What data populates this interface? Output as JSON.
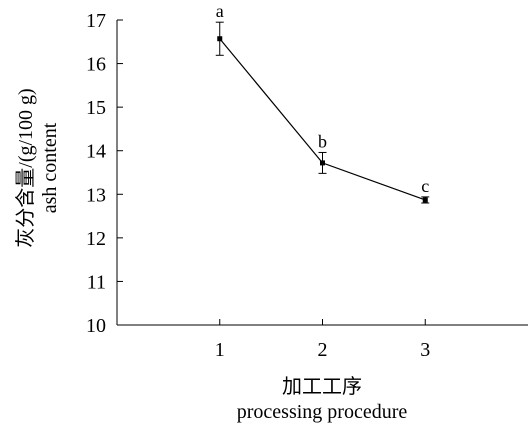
{
  "chart_data": {
    "type": "line",
    "xlabel": "加工工序",
    "xlabel_en": "processing procedure",
    "ylabel": "灰分含量/(g/100 g)",
    "ylabel_en": "ash content",
    "x": [
      1,
      2,
      3
    ],
    "xlim": [
      0,
      4
    ],
    "ylim": [
      10,
      17
    ],
    "yticks": [
      10,
      11,
      12,
      13,
      14,
      15,
      16,
      17
    ],
    "series": [
      {
        "values": [
          16.57,
          13.72,
          12.87
        ],
        "errors": [
          0.38,
          0.24,
          0.07
        ],
        "labels": [
          "a",
          "b",
          "c"
        ]
      }
    ],
    "grid": false,
    "colors": {
      "line": "#000000",
      "marker": "#000000"
    }
  }
}
